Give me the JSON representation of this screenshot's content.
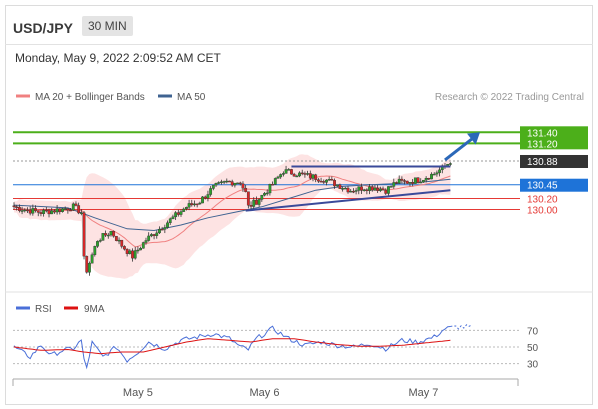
{
  "header": {
    "symbol": "USD/JPY",
    "timeframe": "30 MIN",
    "datetime": "Monday, May 9, 2022 2:09:52 AM CET"
  },
  "colors": {
    "up_candle": "#2ca02c",
    "down_candle": "#d62728",
    "bollinger_fill": "#fde3e3",
    "ma20": "#f08080",
    "ma50": "#3f6391",
    "resistance": "#4caf1a",
    "support": "#e53935",
    "pivot": "#1e73d8",
    "last_price": "#333333",
    "rsi": "#4a6fd8",
    "rsi_ma": "#dd1111"
  },
  "chart_data": [
    {
      "type": "candlestick",
      "title": "",
      "legend": [
        {
          "name": "MA 20 + Bollinger Bands",
          "color": "#f08080"
        },
        {
          "name": "MA 50",
          "color": "#3f6391"
        }
      ],
      "credit": "Research © 2022 Trading Central",
      "ylim": [
        128.65,
        131.75
      ],
      "x_ticks": [
        {
          "label": "May 5",
          "index": 46
        },
        {
          "label": "May 6",
          "index": 93
        },
        {
          "label": "May 7",
          "index": 152
        }
      ],
      "levels": [
        {
          "value": 131.4,
          "label": "131.40",
          "kind": "resistance"
        },
        {
          "value": 131.2,
          "label": "131.20",
          "kind": "resistance"
        },
        {
          "value": 130.88,
          "label": "130.88",
          "kind": "last_price"
        },
        {
          "value": 130.45,
          "label": "130.45",
          "kind": "pivot"
        },
        {
          "value": 130.2,
          "label": "130.20",
          "kind": "support"
        },
        {
          "value": 130.0,
          "label": "130.00",
          "kind": "support"
        }
      ],
      "anchors": [
        [
          0,
          130.05
        ],
        [
          4,
          130.0
        ],
        [
          10,
          129.95
        ],
        [
          17,
          130.0
        ],
        [
          22,
          130.05
        ],
        [
          25,
          129.95
        ],
        [
          26,
          129.1
        ],
        [
          27,
          128.9
        ],
        [
          31,
          129.45
        ],
        [
          36,
          129.6
        ],
        [
          40,
          129.35
        ],
        [
          44,
          129.15
        ],
        [
          49,
          129.45
        ],
        [
          54,
          129.65
        ],
        [
          59,
          129.85
        ],
        [
          64,
          130.05
        ],
        [
          69,
          130.15
        ],
        [
          74,
          130.4
        ],
        [
          79,
          130.5
        ],
        [
          84,
          130.5
        ],
        [
          86,
          130.3
        ],
        [
          87,
          130.05
        ],
        [
          90,
          130.15
        ],
        [
          95,
          130.4
        ],
        [
          100,
          130.7
        ],
        [
          105,
          130.65
        ],
        [
          110,
          130.6
        ],
        [
          115,
          130.55
        ],
        [
          120,
          130.45
        ],
        [
          125,
          130.35
        ],
        [
          130,
          130.4
        ],
        [
          134,
          130.4
        ],
        [
          138,
          130.35
        ],
        [
          142,
          130.5
        ],
        [
          146,
          130.5
        ],
        [
          151,
          130.55
        ],
        [
          156,
          130.65
        ],
        [
          160,
          130.78
        ],
        [
          162,
          130.88
        ]
      ],
      "ma50": [
        [
          0,
          130.08
        ],
        [
          20,
          130.03
        ],
        [
          30,
          129.85
        ],
        [
          42,
          129.65
        ],
        [
          52,
          129.62
        ],
        [
          62,
          129.72
        ],
        [
          72,
          129.85
        ],
        [
          82,
          129.95
        ],
        [
          92,
          130.05
        ],
        [
          102,
          130.2
        ],
        [
          112,
          130.35
        ],
        [
          122,
          130.42
        ],
        [
          132,
          130.45
        ],
        [
          142,
          130.47
        ],
        [
          152,
          130.5
        ],
        [
          162,
          130.55
        ]
      ],
      "trendlines": [
        {
          "from": [
            86,
            129.98
          ],
          "to": [
            162,
            130.35
          ]
        },
        {
          "from": [
            103,
            130.78
          ],
          "to": [
            162,
            130.78
          ]
        }
      ],
      "forecast_arrow": {
        "from": [
          160,
          130.9
        ],
        "to": [
          173,
          131.4
        ]
      }
    },
    {
      "type": "line",
      "title": "",
      "legend": [
        {
          "name": "RSI",
          "color": "#4a6fd8"
        },
        {
          "name": "9MA",
          "color": "#dd1111"
        }
      ],
      "ylim": [
        20,
        80
      ],
      "y_ticks": [
        30,
        50,
        70
      ],
      "rsi": [
        [
          0,
          50
        ],
        [
          6,
          38
        ],
        [
          10,
          52
        ],
        [
          14,
          40
        ],
        [
          18,
          46
        ],
        [
          22,
          48
        ],
        [
          25,
          58
        ],
        [
          26,
          34
        ],
        [
          27,
          25
        ],
        [
          29,
          55
        ],
        [
          33,
          38
        ],
        [
          38,
          50
        ],
        [
          42,
          34
        ],
        [
          46,
          44
        ],
        [
          50,
          56
        ],
        [
          56,
          48
        ],
        [
          62,
          58
        ],
        [
          68,
          62
        ],
        [
          74,
          66
        ],
        [
          80,
          60
        ],
        [
          84,
          50
        ],
        [
          87,
          47
        ],
        [
          90,
          60
        ],
        [
          96,
          72
        ],
        [
          102,
          60
        ],
        [
          108,
          52
        ],
        [
          114,
          56
        ],
        [
          120,
          52
        ],
        [
          126,
          50
        ],
        [
          132,
          54
        ],
        [
          138,
          48
        ],
        [
          144,
          58
        ],
        [
          150,
          56
        ],
        [
          156,
          62
        ],
        [
          160,
          72
        ],
        [
          164,
          74
        ],
        [
          170,
          74
        ]
      ],
      "rsi_ma": [
        [
          0,
          50
        ],
        [
          10,
          46
        ],
        [
          20,
          47
        ],
        [
          26,
          44
        ],
        [
          32,
          42
        ],
        [
          40,
          44
        ],
        [
          48,
          44
        ],
        [
          56,
          50
        ],
        [
          64,
          56
        ],
        [
          72,
          60
        ],
        [
          80,
          58
        ],
        [
          88,
          56
        ],
        [
          96,
          60
        ],
        [
          104,
          60
        ],
        [
          112,
          56
        ],
        [
          120,
          53
        ],
        [
          128,
          51
        ],
        [
          136,
          51
        ],
        [
          144,
          52
        ],
        [
          150,
          54
        ],
        [
          156,
          56
        ],
        [
          162,
          58
        ]
      ]
    }
  ]
}
